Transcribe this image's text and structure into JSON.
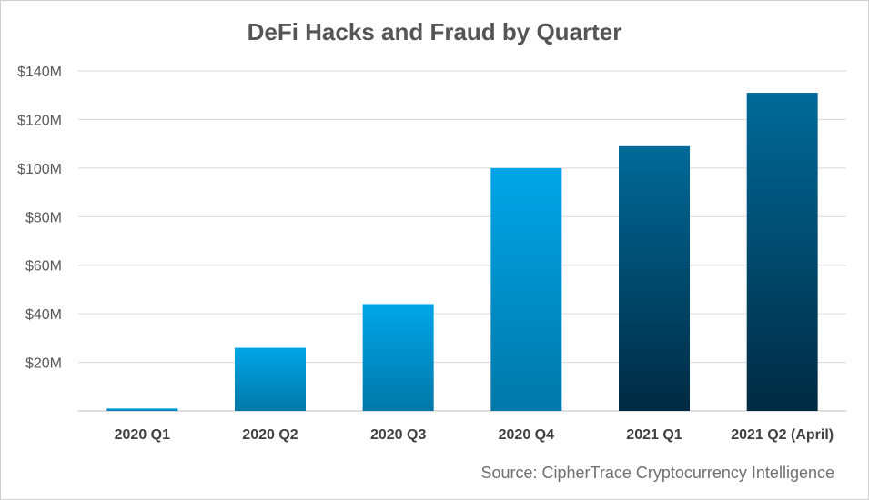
{
  "chart_data": {
    "type": "bar",
    "title": "DeFi Hacks and Fraud by Quarter",
    "categories": [
      "2020 Q1",
      "2020 Q2",
      "2020 Q3",
      "2020 Q4",
      "2021 Q1",
      "2021 Q2 (April)"
    ],
    "values": [
      1,
      26,
      44,
      100,
      109,
      131
    ],
    "ylim": [
      0,
      140
    ],
    "ytick_values": [
      20,
      40,
      60,
      80,
      100,
      120,
      140
    ],
    "ytick_labels": [
      "$20M",
      "$40M",
      "$60M",
      "$80M",
      "$100M",
      "$120M",
      "$140M"
    ],
    "grid": true,
    "xlabel": "",
    "ylabel": "",
    "colors": {
      "2020": [
        "#00a6e8",
        "#0078a8"
      ],
      "2021": [
        "#006a98",
        "#002a42"
      ]
    },
    "source": "Source: CipherTrace Cryptocurrency Intelligence"
  }
}
